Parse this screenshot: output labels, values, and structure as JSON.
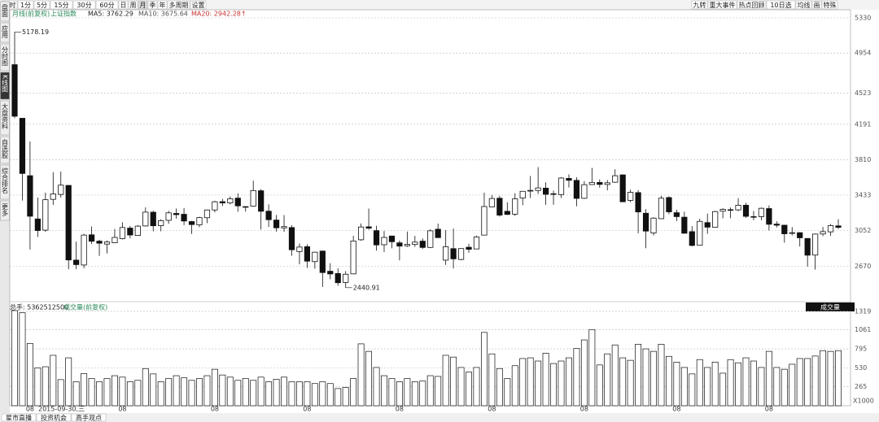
{
  "toolbar": {
    "left": [
      "分时",
      "1分",
      "5分",
      "15分",
      "30分",
      "60分",
      "日",
      "周",
      "月",
      "季",
      "年",
      "多周期",
      "设置"
    ],
    "right": [
      "九转",
      "重大事件",
      "热点回顾",
      "10日选",
      "均线",
      "画",
      "特殊"
    ]
  },
  "sidebar": [
    "盘面",
    "应用",
    "分时图",
    "K线图",
    "大盘资料",
    "自选股",
    "综合排名",
    "更多"
  ],
  "bottom_tabs": [
    "星市直播",
    "投资机会",
    "高手观点"
  ],
  "chart_data": {
    "type": "candlestick",
    "period_label": "月线(前复权)",
    "title": "上证指数",
    "ma_labels": [
      "MA5: 3762.29",
      "MA10: 3675.64",
      "MA20: 2942.28↑"
    ],
    "annotations": [
      "5178.19",
      "2440.91"
    ],
    "cursor_label": "2015-09-30,三",
    "categories": [
      null,
      null,
      "08",
      null,
      null,
      null,
      null,
      null,
      null,
      null,
      null,
      null,
      null,
      null,
      "08",
      null,
      null,
      null,
      null,
      null,
      null,
      null,
      null,
      null,
      null,
      null,
      "08",
      null,
      null,
      null,
      null,
      null,
      null,
      null,
      null,
      null,
      null,
      null,
      "08",
      null,
      null,
      null,
      null,
      null,
      null,
      null,
      null,
      null,
      null,
      null,
      "08",
      null,
      null,
      null,
      null,
      null,
      null,
      null,
      null,
      null,
      null,
      null,
      "08",
      null,
      null,
      null,
      null,
      null,
      null,
      null,
      null,
      null,
      null,
      null,
      "08",
      null,
      null,
      null,
      null,
      null,
      null,
      null,
      null,
      null,
      null,
      null,
      "08",
      null,
      null,
      null,
      null,
      null,
      null,
      null,
      null,
      null,
      null,
      null,
      "08",
      null,
      null,
      null,
      null,
      null,
      null,
      null,
      null,
      null
    ],
    "open": [
      4829,
      4255,
      3640,
      3177,
      3057,
      3387,
      3440,
      3536,
      2736,
      2684,
      3007,
      2939,
      2908,
      2922,
      2966,
      3079,
      3000,
      3102,
      3249,
      3105,
      3162,
      3236,
      3227,
      3149,
      3114,
      3190,
      3273,
      3362,
      3349,
      3400,
      3309,
      3314,
      3479,
      3260,
      3165,
      3081,
      3085,
      2828,
      2880,
      2720,
      2833,
      2617,
      2593,
      2497,
      2589,
      2954,
      3093,
      3052,
      2901,
      2994,
      2921,
      2890,
      2904,
      2939,
      2872,
      3067,
      2736,
      2859,
      2743,
      2874,
      2856,
      3004,
      3306,
      3399,
      3259,
      3228,
      3400,
      3475,
      3482,
      3507,
      3440,
      3438,
      3611,
      3590,
      3398,
      3545,
      3568,
      3546,
      3570,
      3649,
      3376,
      3459,
      3238,
      3027,
      3180,
      3406,
      3244,
      3196,
      3041,
      2896,
      3138,
      3088,
      3260,
      3276,
      3274,
      3324,
      3202,
      3202,
      3288,
      3122,
      3110,
      3022,
      3030,
      2968,
      2790,
      3016,
      3039,
      3103
    ],
    "high": [
      5178.19,
      4255,
      4006,
      3407,
      3459,
      3678,
      3684,
      3538,
      2934,
      3019,
      3097,
      2954,
      2947,
      3069,
      3141,
      3102,
      3112,
      3301,
      3265,
      3174,
      3264,
      3289,
      3295,
      3157,
      3200,
      3277,
      3372,
      3392,
      3418,
      3451,
      3311,
      3587,
      3496,
      3333,
      3220,
      3219,
      3110,
      2915,
      2906,
      2827,
      2838,
      2703,
      2648,
      2618,
      2997,
      3129,
      3288,
      3104,
      3048,
      2998,
      2946,
      3042,
      2996,
      2969,
      3066,
      3127,
      3058,
      3074,
      2864,
      2911,
      3000,
      3458,
      3433,
      3425,
      3355,
      3453,
      3475,
      3637,
      3732,
      3570,
      3481,
      3625,
      3655,
      3623,
      3582,
      3723,
      3600,
      3594,
      3709,
      3652,
      3490,
      3486,
      3283,
      3196,
      3424,
      3419,
      3276,
      3255,
      3100,
      3180,
      3234,
      3264,
      3294,
      3300,
      3400,
      3350,
      3262,
      3300,
      3322,
      3152,
      3112,
      3090,
      3036,
      2972,
      3020,
      3091,
      3123,
      3174
    ],
    "low": [
      4257,
      3374,
      2850,
      2983,
      3039,
      3327,
      3406,
      2638,
      2638,
      2650,
      2909,
      2781,
      2807,
      2918,
      2957,
      2969,
      2999,
      3095,
      3044,
      3045,
      3125,
      3180,
      3111,
      3016,
      3088,
      3131,
      3247,
      3316,
      3333,
      3254,
      3255,
      3307,
      3063,
      3091,
      3041,
      3039,
      2782,
      2691,
      2653,
      2644,
      2449,
      2531,
      2462,
      2440.91,
      2585,
      2943,
      3063,
      2838,
      2822,
      2863,
      2733,
      2877,
      2878,
      2857,
      2865,
      2977,
      2685,
      2647,
      2735,
      2815,
      2854,
      3004,
      3303,
      3202,
      3220,
      3209,
      3325,
      3401,
      3446,
      3329,
      3328,
      3401,
      3513,
      3313,
      3391,
      3542,
      3512,
      3483,
      3564,
      3357,
      3357,
      3023,
      2864,
      3000,
      3175,
      3227,
      3155,
      3021,
      2885,
      2896,
      3017,
      3088,
      3183,
      3185,
      3261,
      3188,
      3164,
      3163,
      3053,
      3086,
      2923,
      3000,
      2882,
      2666,
      2635,
      2993,
      2995,
      3069
    ],
    "close": [
      4277,
      3664,
      3206,
      3053,
      3383,
      3445,
      3539,
      2738,
      2688,
      3004,
      2938,
      2917,
      2930,
      2979,
      3085,
      3005,
      3100,
      3250,
      3104,
      3159,
      3242,
      3223,
      3155,
      3117,
      3192,
      3273,
      3361,
      3349,
      3393,
      3317,
      3307,
      3481,
      3259,
      3169,
      3082,
      3095,
      2847,
      2876,
      2725,
      2821,
      2603,
      2588,
      2494,
      2585,
      2941,
      3091,
      3078,
      2899,
      2979,
      2933,
      2886,
      2905,
      2929,
      2872,
      3050,
      2977,
      2880,
      2750,
      2860,
      2852,
      2985,
      3310,
      3396,
      3218,
      3225,
      3392,
      3473,
      3483,
      3509,
      3441,
      3447,
      3615,
      3591,
      3397,
      3544,
      3568,
      3547,
      3564,
      3640,
      3361,
      3462,
      3252,
      3047,
      3186,
      3399,
      3253,
      3202,
      3024,
      2893,
      3151,
      3089,
      3256,
      3280,
      3273,
      3323,
      3205,
      3202,
      3291,
      3120,
      3110,
      3018,
      3030,
      2975,
      2789,
      3015,
      3041,
      3105,
      3087
    ],
    "ylim": [
      2300,
      5417
    ],
    "yticks": [
      5330,
      4954,
      4523,
      4191,
      3810,
      3433,
      3052,
      2670
    ],
    "volume_title": "总手: 5362512500",
    "volume_label": "成交量(前复权)",
    "volume_indicator": "成交量",
    "volume": [
      1330,
      1300,
      870,
      530,
      545,
      705,
      365,
      670,
      335,
      450,
      380,
      335,
      380,
      420,
      400,
      335,
      355,
      520,
      445,
      335,
      380,
      420,
      390,
      355,
      380,
      420,
      510,
      430,
      400,
      355,
      380,
      355,
      400,
      335,
      370,
      400,
      335,
      335,
      335,
      310,
      335,
      310,
      240,
      255,
      380,
      865,
      760,
      535,
      420,
      380,
      335,
      380,
      335,
      345,
      420,
      410,
      705,
      680,
      535,
      470,
      535,
      1025,
      725,
      520,
      380,
      560,
      660,
      670,
      625,
      735,
      590,
      625,
      670,
      800,
      920,
      1065,
      570,
      725,
      850,
      670,
      635,
      860,
      795,
      760,
      860,
      690,
      610,
      535,
      445,
      645,
      535,
      610,
      455,
      645,
      600,
      670,
      625,
      535,
      760,
      535,
      510,
      580,
      660,
      660,
      695,
      770,
      760,
      770
    ],
    "vlim": [
      0,
      1398
    ],
    "vticks": [
      1319,
      1061,
      795,
      530,
      265
    ],
    "vunit_label": "X1000"
  }
}
